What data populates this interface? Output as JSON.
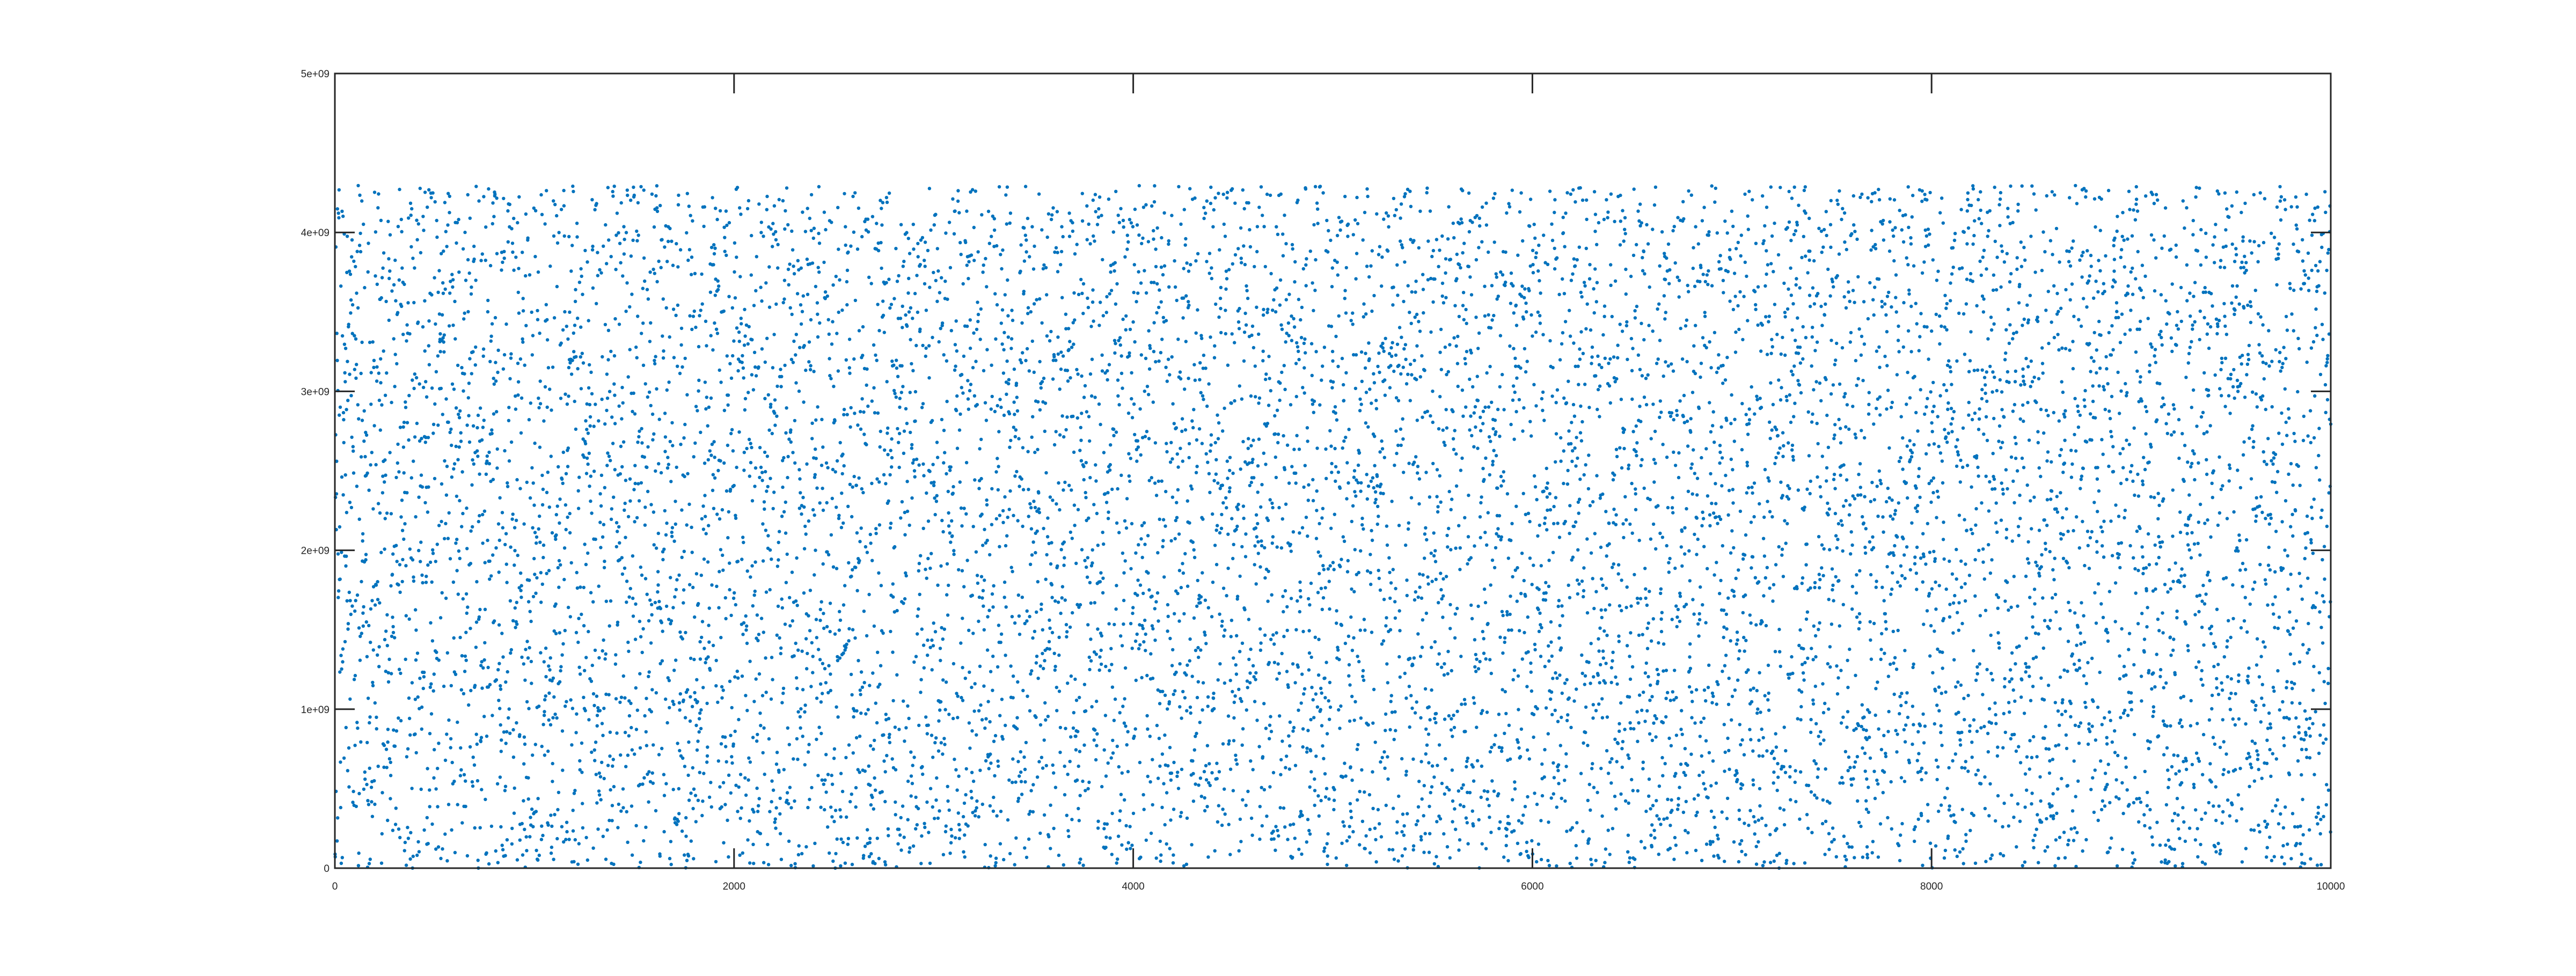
{
  "chart_data": {
    "type": "scatter",
    "title": "",
    "xlabel": "",
    "ylabel": "",
    "xlim": [
      0,
      10000
    ],
    "ylim": [
      0,
      5000000000
    ],
    "x_ticks": [
      0,
      2000,
      4000,
      6000,
      8000,
      10000
    ],
    "x_tick_labels": [
      "0",
      "2000",
      "4000",
      "6000",
      "8000",
      "10000"
    ],
    "y_ticks": [
      0,
      1000000000,
      2000000000,
      3000000000,
      4000000000,
      5000000000
    ],
    "y_tick_labels": [
      "0",
      "1e+09",
      "2e+09",
      "3e+09",
      "4e+09",
      "5e+09"
    ],
    "grid": false,
    "legend": "none",
    "marker_color": "#0072BD",
    "series": [
      {
        "x_range": [
          1,
          10000
        ],
        "count": 10000,
        "y_distribution": "uniform",
        "y_range": [
          0,
          4294967295
        ]
      }
    ]
  }
}
